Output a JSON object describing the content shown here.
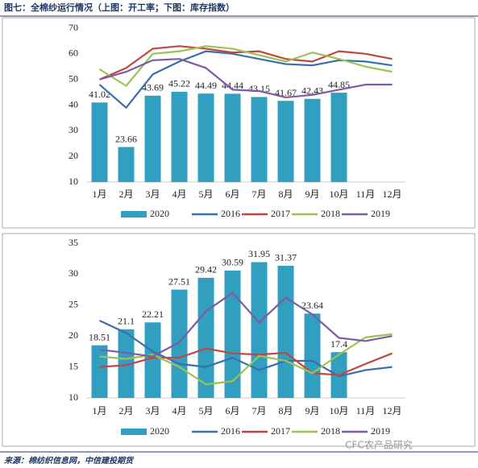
{
  "title": "图七：全棉纱运行情况（上图：开工率；下图：库存指数）",
  "source": "来源：棉纺织信息网，中信建投期货",
  "watermark": "CFC农产品研究",
  "chart_data": [
    {
      "type": "combo",
      "categories": [
        "1月",
        "2月",
        "3月",
        "4月",
        "5月",
        "6月",
        "7月",
        "8月",
        "9月",
        "10月",
        "11月",
        "12月"
      ],
      "ylim": [
        10,
        70
      ],
      "yticks": [
        10,
        20,
        30,
        40,
        50,
        60,
        70
      ],
      "grid": false,
      "series": [
        {
          "name": "2020",
          "type": "bar",
          "color": "#31a0c0",
          "values": [
            41.02,
            23.66,
            43.69,
            45.22,
            44.49,
            44.44,
            43.15,
            41.67,
            42.43,
            44.85,
            null,
            null
          ]
        },
        {
          "name": "2016",
          "type": "line",
          "color": "#3b6db1",
          "values": [
            48,
            39,
            52,
            57,
            61,
            60,
            58,
            56,
            55.5,
            57.5,
            57,
            55.5
          ]
        },
        {
          "name": "2017",
          "type": "line",
          "color": "#c0473f",
          "values": [
            50,
            54.5,
            62,
            63,
            62,
            60.5,
            61,
            58,
            57,
            61,
            60,
            58
          ]
        },
        {
          "name": "2018",
          "type": "line",
          "color": "#9bc254",
          "values": [
            54,
            47.5,
            60,
            61,
            63,
            62,
            59.5,
            57,
            60.5,
            58,
            55,
            53
          ]
        },
        {
          "name": "2019",
          "type": "line",
          "color": "#7d5ba6",
          "values": [
            50,
            53,
            57.5,
            58,
            54.5,
            46,
            45.5,
            43,
            44,
            46,
            48,
            48
          ]
        }
      ]
    },
    {
      "type": "combo",
      "categories": [
        "1月",
        "2月",
        "3月",
        "4月",
        "5月",
        "6月",
        "7月",
        "8月",
        "9月",
        "10月",
        "11月",
        "12月"
      ],
      "ylim": [
        10,
        35
      ],
      "yticks": [
        10,
        15,
        20,
        25,
        30,
        35
      ],
      "grid": false,
      "series": [
        {
          "name": "2020",
          "type": "bar",
          "color": "#31a0c0",
          "values": [
            18.51,
            21.1,
            22.21,
            27.51,
            29.42,
            30.59,
            31.95,
            31.37,
            23.64,
            17.4,
            null,
            null
          ]
        },
        {
          "name": "2016",
          "type": "line",
          "color": "#3b6db1",
          "values": [
            22.5,
            20.5,
            17.5,
            15.5,
            15,
            16.5,
            14.5,
            16,
            16,
            13.5,
            14.5,
            15
          ]
        },
        {
          "name": "2017",
          "type": "line",
          "color": "#c0473f",
          "values": [
            15,
            15.3,
            16.5,
            16.5,
            18,
            17.2,
            17,
            17.3,
            14,
            13.7,
            15.5,
            17.2
          ]
        },
        {
          "name": "2018",
          "type": "line",
          "color": "#9bc254",
          "values": [
            16.7,
            16.3,
            17,
            15,
            12.2,
            12.7,
            16.8,
            16,
            14,
            17,
            19.8,
            20.3
          ]
        },
        {
          "name": "2019",
          "type": "line",
          "color": "#7d5ba6",
          "values": [
            17.8,
            17.3,
            16.7,
            19,
            24,
            27,
            22.2,
            26.2,
            23.5,
            19.7,
            19.2,
            20
          ]
        }
      ]
    }
  ]
}
